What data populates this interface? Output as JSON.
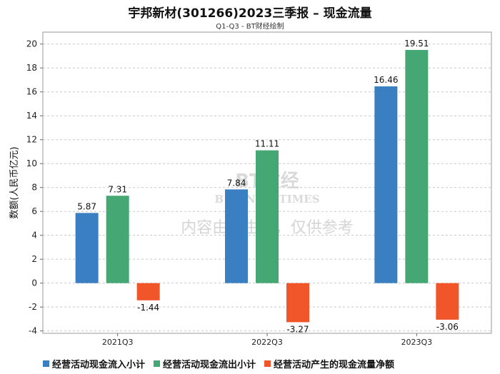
{
  "title": "宇邦新材(301266)2023三季报 – 现金流量",
  "subtitle": "Q1-Q3 - BT财经绘制",
  "watermark": {
    "brand": "BT财经",
    "brand_en": "BUSINESSTIMES",
    "notice": "内容由AI生成，仅供参考"
  },
  "chart_data": {
    "type": "bar",
    "title": "宇邦新材(301266)2023三季报 – 现金流量",
    "subtitle": "Q1-Q3 - BT财经绘制",
    "categories": [
      "2021Q3",
      "2022Q3",
      "2023Q3"
    ],
    "series": [
      {
        "name": "经营活动现金流入小计",
        "color": "#3a7fc1",
        "values": [
          5.87,
          7.84,
          16.46
        ],
        "labels": [
          "5.87",
          "7.84",
          "16.46"
        ]
      },
      {
        "name": "经营活动现金流出小计",
        "color": "#45a874",
        "values": [
          7.31,
          11.11,
          19.51
        ],
        "labels": [
          "7.31",
          "11.11",
          "19.51"
        ]
      },
      {
        "name": "经营活动产生的现金流量净额",
        "color": "#f0562a",
        "values": [
          -1.44,
          -3.27,
          -3.06
        ],
        "labels": [
          "-1.44",
          "-3.27",
          "-3.06"
        ]
      }
    ],
    "ylabel": "数额(人民币亿元)",
    "xlabel": "",
    "ylim": [
      -4.2,
      21
    ],
    "yticks": [
      -4,
      -2,
      0,
      2,
      4,
      6,
      8,
      10,
      12,
      14,
      16,
      18,
      20
    ],
    "grid": true,
    "legend": "bottom"
  }
}
